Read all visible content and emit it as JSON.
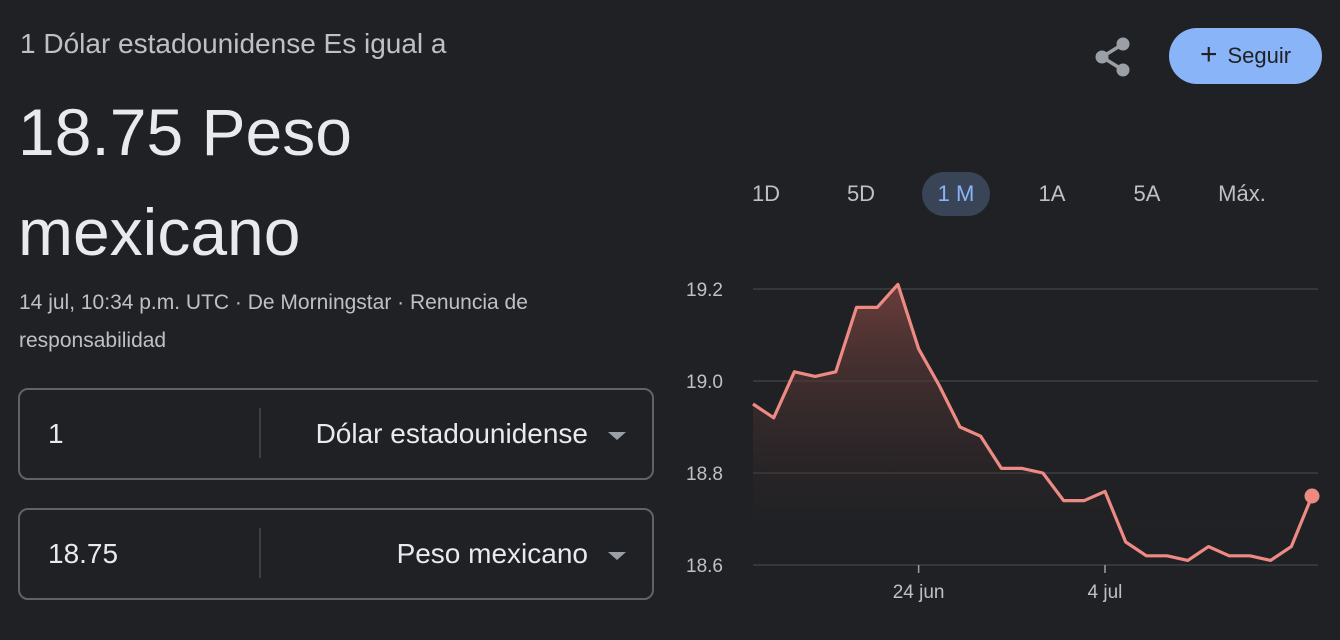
{
  "header": {
    "subtitle": "1 Dólar estadounidense Es igual a",
    "value_line1": "18.75 Peso",
    "value_line2": "mexicano",
    "meta_line1": "14 jul, 10:34 p.m. UTC · De Morningstar · Renuncia de",
    "meta_line2": "responsabilidad"
  },
  "actions": {
    "share_icon": "share-icon",
    "follow_label": "Seguir"
  },
  "converter": {
    "from": {
      "amount": "1",
      "currency": "Dólar estadounidense"
    },
    "to": {
      "amount": "18.75",
      "currency": "Peso mexicano"
    }
  },
  "range_tabs": [
    {
      "label": "1D",
      "active": false
    },
    {
      "label": "5D",
      "active": false
    },
    {
      "label": "1 M",
      "active": true
    },
    {
      "label": "1A",
      "active": false
    },
    {
      "label": "5A",
      "active": false
    },
    {
      "label": "Máx.",
      "active": false
    }
  ],
  "colors": {
    "background": "#202124",
    "line": "#ee8a84",
    "accent": "#8ab4f8"
  },
  "chart_data": {
    "type": "line",
    "ylim": [
      18.6,
      19.2
    ],
    "yticks": [
      "19.2",
      "19.0",
      "18.8",
      "18.6"
    ],
    "xtick_labels": [
      {
        "label": "24 jun",
        "index": 8
      },
      {
        "label": "4 jul",
        "index": 17
      }
    ],
    "values": [
      18.95,
      18.92,
      19.02,
      19.01,
      19.02,
      19.16,
      19.16,
      19.21,
      19.07,
      18.99,
      18.9,
      18.88,
      18.81,
      18.81,
      18.8,
      18.74,
      18.74,
      18.76,
      18.65,
      18.62,
      18.62,
      18.61,
      18.64,
      18.62,
      18.62,
      18.61,
      18.64,
      18.75
    ]
  }
}
